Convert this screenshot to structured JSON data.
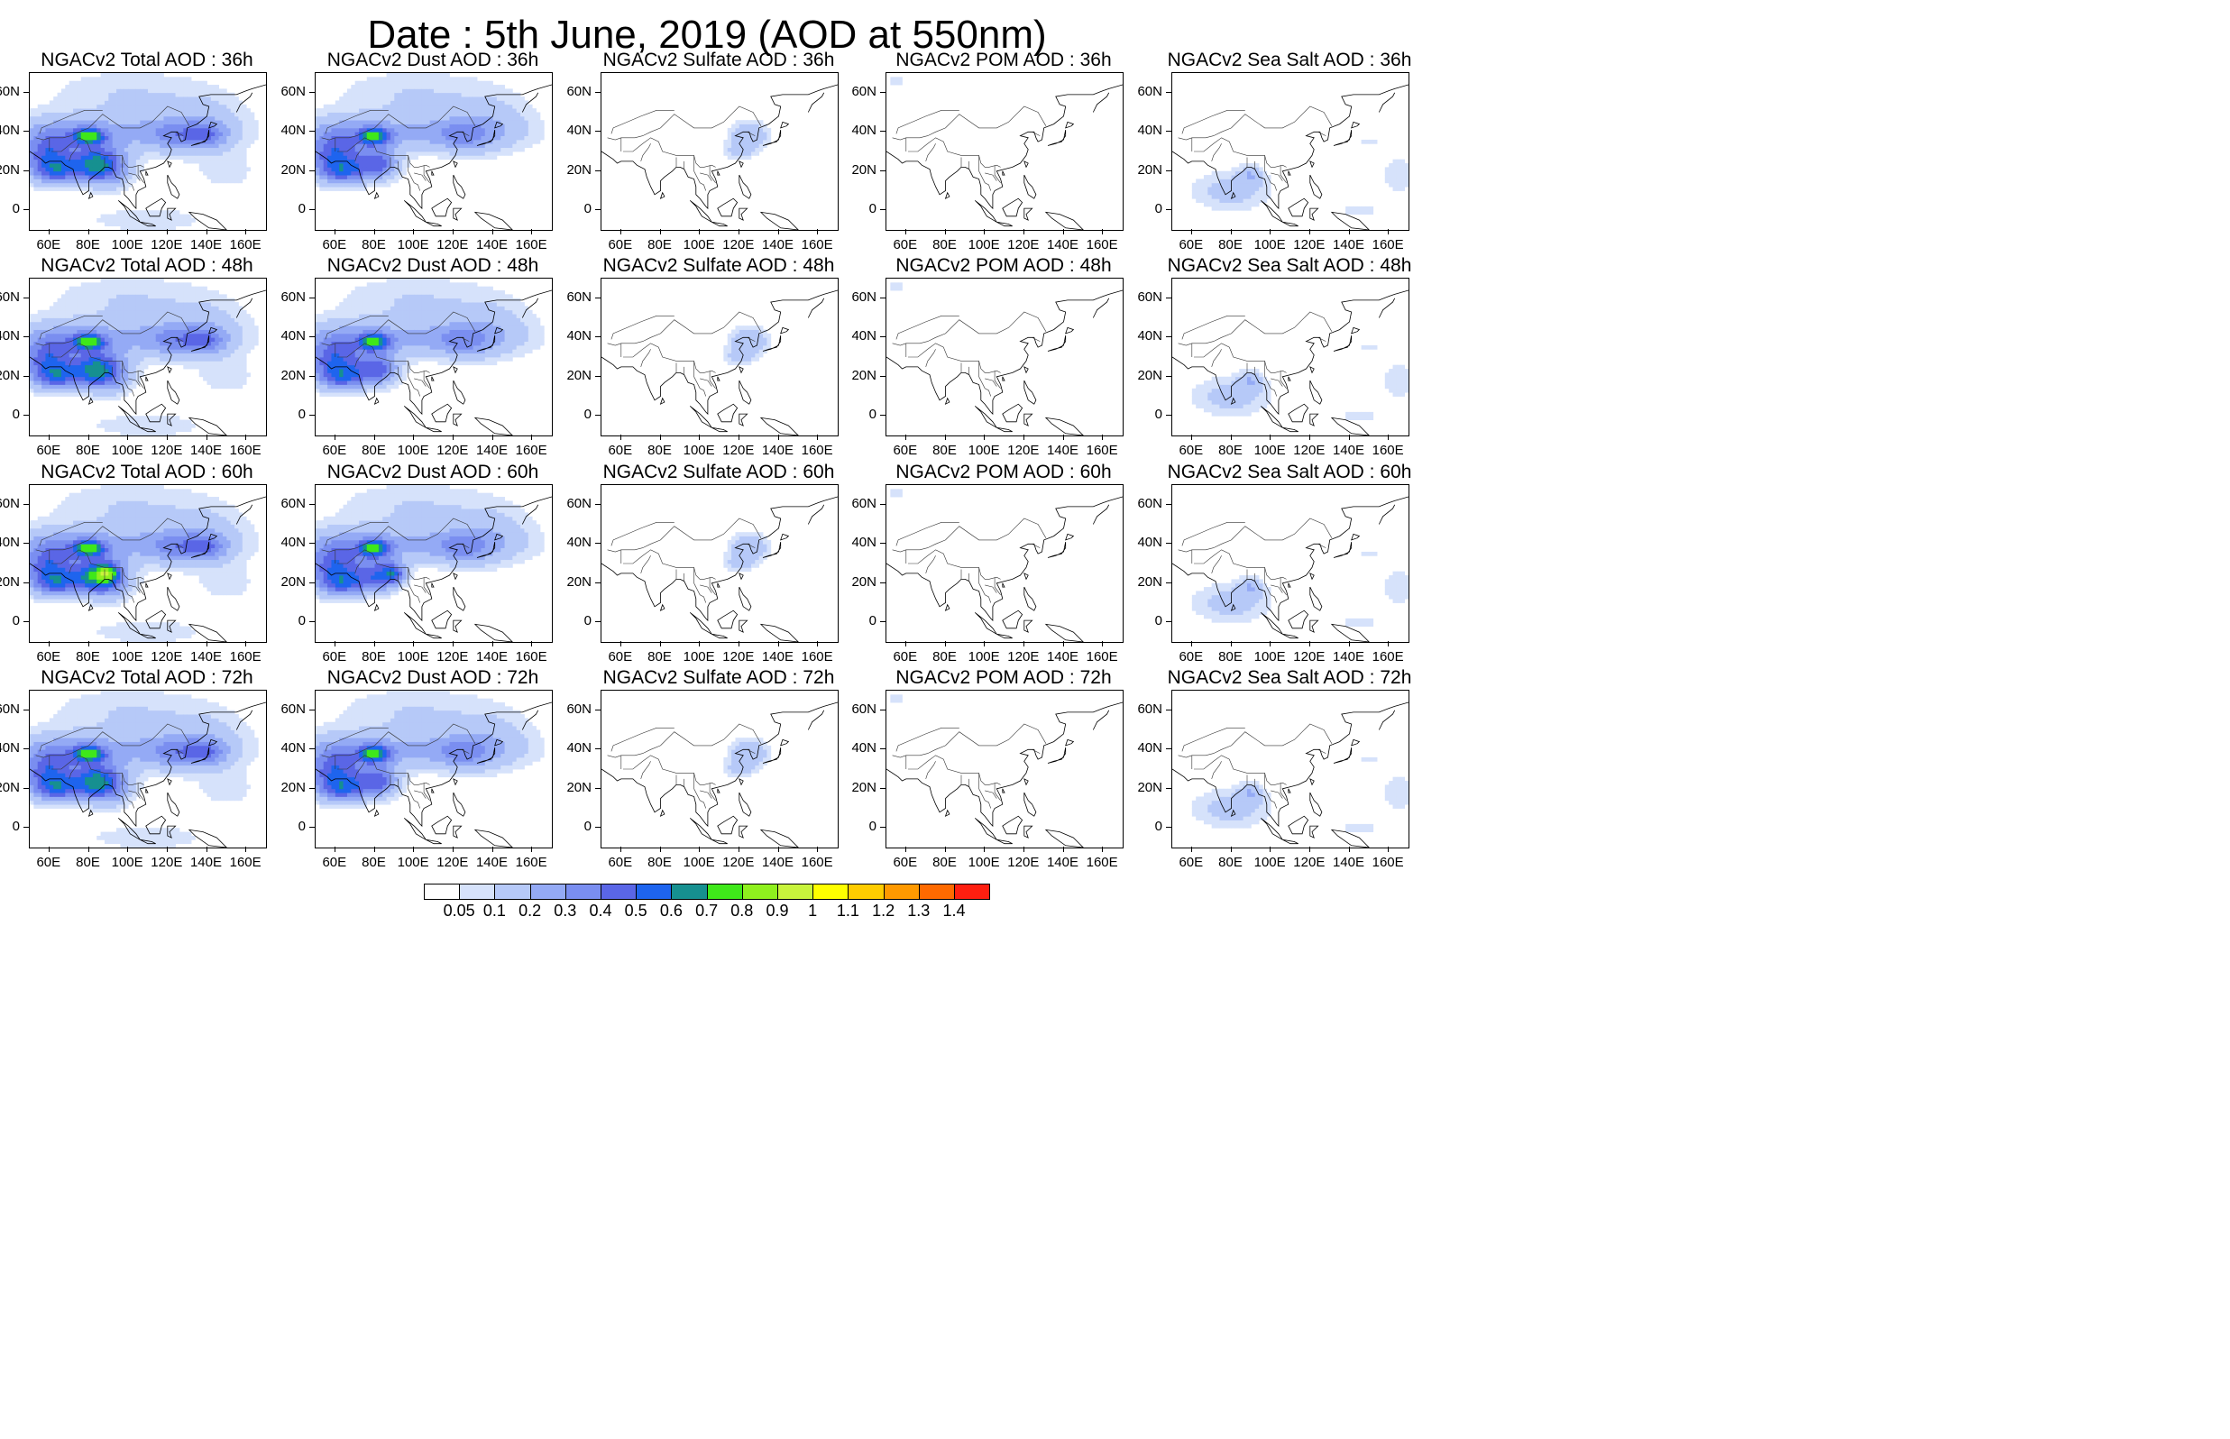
{
  "title": "Date : 5th June, 2019 (AOD at 550nm)",
  "axes": {
    "lat_labels": [
      "60N",
      "40N",
      "20N",
      "0"
    ],
    "lat_values": [
      60,
      40,
      20,
      0
    ],
    "lon_labels": [
      "60E",
      "80E",
      "100E",
      "120E",
      "140E",
      "160E"
    ],
    "lon_values": [
      60,
      80,
      100,
      120,
      140,
      160
    ],
    "lon_range": [
      50,
      170
    ],
    "lat_range": [
      -10,
      70
    ]
  },
  "panels": [
    {
      "title": "NGACv2 Total AOD : 36h",
      "species": "total",
      "hour": "36h"
    },
    {
      "title": "NGACv2 Dust AOD : 36h",
      "species": "dust",
      "hour": "36h"
    },
    {
      "title": "NGACv2 Sulfate AOD : 36h",
      "species": "sulfate",
      "hour": "36h"
    },
    {
      "title": "NGACv2 POM AOD : 36h",
      "species": "pom",
      "hour": "36h"
    },
    {
      "title": "NGACv2 Sea Salt AOD : 36h",
      "species": "seasalt",
      "hour": "36h"
    },
    {
      "title": "NGACv2 Total AOD : 48h",
      "species": "total",
      "hour": "48h"
    },
    {
      "title": "NGACv2 Dust AOD : 48h",
      "species": "dust",
      "hour": "48h"
    },
    {
      "title": "NGACv2 Sulfate AOD : 48h",
      "species": "sulfate",
      "hour": "48h"
    },
    {
      "title": "NGACv2 POM AOD : 48h",
      "species": "pom",
      "hour": "48h"
    },
    {
      "title": "NGACv2 Sea Salt AOD : 48h",
      "species": "seasalt",
      "hour": "48h"
    },
    {
      "title": "NGACv2 Total AOD : 60h",
      "species": "total",
      "hour": "60h"
    },
    {
      "title": "NGACv2 Dust AOD : 60h",
      "species": "dust",
      "hour": "60h"
    },
    {
      "title": "NGACv2 Sulfate AOD : 60h",
      "species": "sulfate",
      "hour": "60h"
    },
    {
      "title": "NGACv2 POM AOD : 60h",
      "species": "pom",
      "hour": "60h"
    },
    {
      "title": "NGACv2 Sea Salt AOD : 60h",
      "species": "seasalt",
      "hour": "60h"
    },
    {
      "title": "NGACv2 Total AOD : 72h",
      "species": "total",
      "hour": "72h"
    },
    {
      "title": "NGACv2 Dust AOD : 72h",
      "species": "dust",
      "hour": "72h"
    },
    {
      "title": "NGACv2 Sulfate AOD : 72h",
      "species": "sulfate",
      "hour": "72h"
    },
    {
      "title": "NGACv2 POM AOD : 72h",
      "species": "pom",
      "hour": "72h"
    },
    {
      "title": "NGACv2 Sea Salt  AOD : 72h",
      "species": "seasalt",
      "hour": "72h"
    }
  ],
  "colorbar": {
    "labels": [
      "0.05",
      "0.1",
      "0.2",
      "0.3",
      "0.4",
      "0.5",
      "0.6",
      "0.7",
      "0.8",
      "0.9",
      "1",
      "1.1",
      "1.2",
      "1.3",
      "1.4"
    ],
    "colors": [
      "#ffffff",
      "#d6e2fb",
      "#b6c9f8",
      "#94aaf5",
      "#7a8ef0",
      "#5a66e6",
      "#1e64ee",
      "#169090",
      "#3fe81a",
      "#8ff01e",
      "#c8f43c",
      "#ffff00",
      "#ffcc00",
      "#ff9900",
      "#ff6a00",
      "#ff1f10"
    ]
  }
}
